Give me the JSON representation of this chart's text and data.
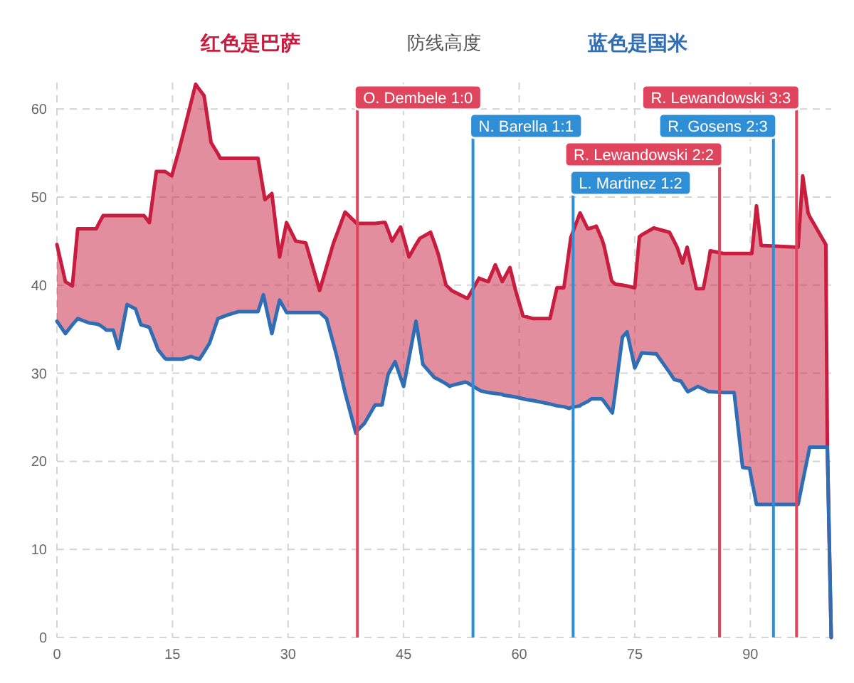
{
  "chart_data": {
    "type": "line",
    "title": "防线高度",
    "xlim": [
      0,
      100.5
    ],
    "xticks": [
      0,
      15,
      30,
      45,
      60,
      75,
      90
    ],
    "ylim": [
      0,
      63
    ],
    "yticks": [
      0,
      10,
      20,
      30,
      40,
      50,
      60
    ],
    "grid": true,
    "legend": "top",
    "x": [
      0,
      1.1,
      2.0,
      2.7,
      4.2,
      5.1,
      5.5,
      6.0,
      6.4,
      7.3,
      8.0,
      9.1,
      10.2,
      10.9,
      11.3,
      12.0,
      12.9,
      13.1,
      14.0,
      14.2,
      14.9,
      15.8,
      16.3,
      17.4,
      18.0,
      18.5,
      19.1,
      19.8,
      20.0,
      20.9,
      21.2,
      22.1,
      23.6,
      26.1,
      26.8,
      27.0,
      27.9,
      28.9,
      29.8,
      31.0,
      32.3,
      34.1,
      35.0,
      35.9,
      36.3,
      37.4,
      38.8,
      38.9,
      39.9,
      41.3,
      42.2,
      42.6,
      43.0,
      43.5,
      43.9,
      44.6,
      45.0,
      45.7,
      46.6,
      47.1,
      47.5,
      48.5,
      49.0,
      49.5,
      50.5,
      51.0,
      51.2,
      53.0,
      53.3,
      54.8,
      55.0,
      56.0,
      56.9,
      57.8,
      58.0,
      58.8,
      59.5,
      60.5,
      61.0,
      61.8,
      64.0,
      64.9,
      65.8,
      66.5,
      66.7,
      67.9,
      68.0,
      68.9,
      69.4,
      70.0,
      70.7,
      71.0,
      72.0,
      72.1,
      72.5,
      73.4,
      74.0,
      75.0,
      75.6,
      75.9,
      77.5,
      77.8,
      79.5,
      80.1,
      80.5,
      81.0,
      81.2,
      81.8,
      81.9,
      83.0,
      83.2,
      83.9,
      84.6,
      84.8,
      86.5,
      87.9,
      89.0,
      89.9,
      90.2,
      90.8,
      91.4,
      96.2,
      96.8,
      97.5,
      97.7,
      99.8,
      100.0,
      100.5
    ],
    "series": [
      {
        "name": "红色是巴萨",
        "color": "#c81d3e",
        "values": [
          44.6,
          40.4,
          39.9,
          46.4,
          46.4,
          46.4,
          47.1,
          47.9,
          47.9,
          47.9,
          47.9,
          47.9,
          47.9,
          47.9,
          47.9,
          47.1,
          52.9,
          52.9,
          52.9,
          52.8,
          52.4,
          55.2,
          56.9,
          60.7,
          62.8,
          62.2,
          61.5,
          57.4,
          56.2,
          54.9,
          54.4,
          54.4,
          54.4,
          54.4,
          50.7,
          49.7,
          50.4,
          43.2,
          47.1,
          45.0,
          44.8,
          39.4,
          42.1,
          44.8,
          45.7,
          48.3,
          47.1,
          47.0,
          47.0,
          47.0,
          47.1,
          47.1,
          46.2,
          45.0,
          45.6,
          46.6,
          45.4,
          43.2,
          44.6,
          45.3,
          45.5,
          46.0,
          44.8,
          43.5,
          40.0,
          39.6,
          39.4,
          38.6,
          38.5,
          40.8,
          40.7,
          40.4,
          42.3,
          40.4,
          40.7,
          42.0,
          39.5,
          36.5,
          36.4,
          36.2,
          36.2,
          39.7,
          39.7,
          44.1,
          45.4,
          48.2,
          48.0,
          46.4,
          46.5,
          46.7,
          45.3,
          44.5,
          40.5,
          40.4,
          40.1,
          40.0,
          39.9,
          39.7,
          45.5,
          45.7,
          46.5,
          46.4,
          46.0,
          45.0,
          44.3,
          43.0,
          42.5,
          44.3,
          43.9,
          39.6,
          39.6,
          39.6,
          42.8,
          43.9,
          43.6,
          43.6,
          43.6,
          43.6,
          43.6,
          49.0,
          44.5,
          44.3,
          52.4,
          48.2,
          47.8,
          44.6,
          21.6,
          0
        ],
        "upper": [
          44.6,
          40.4,
          39.9,
          46.4,
          46.4,
          46.4,
          47.1,
          47.9,
          47.9,
          47.9,
          47.9,
          47.9,
          47.9,
          47.9,
          47.9,
          47.1,
          52.9,
          52.9,
          52.9,
          52.8,
          52.4,
          55.2,
          56.9,
          60.7,
          62.8,
          62.2,
          61.5,
          57.4,
          56.2,
          54.9,
          54.4,
          54.4,
          54.4,
          54.4,
          50.7,
          49.7,
          50.4,
          43.2,
          47.1,
          45.0,
          44.8,
          39.4,
          42.1,
          44.8,
          45.7,
          48.3,
          47.1,
          47.0,
          47.0,
          47.0,
          47.1,
          47.1,
          46.2,
          45.0,
          45.6,
          46.6,
          45.4,
          43.2,
          44.6,
          45.3,
          45.5,
          46.0,
          44.8,
          43.5,
          40.0,
          39.6,
          39.4,
          38.6,
          38.5,
          40.8,
          40.7,
          40.4,
          42.3,
          40.4,
          40.7,
          42.0,
          39.5,
          36.5,
          36.4,
          36.2,
          36.2,
          39.7,
          39.7,
          44.1,
          45.4,
          48.2,
          48.0,
          46.4,
          46.5,
          46.7,
          45.3,
          44.5,
          40.5,
          40.4,
          40.1,
          40.0,
          39.9,
          39.7,
          45.5,
          45.7,
          46.5,
          46.4,
          46.0,
          45.0,
          44.3,
          43.0,
          42.5,
          44.3,
          43.9,
          39.6,
          39.6,
          39.6,
          42.8,
          43.9,
          43.6,
          43.6,
          43.6,
          43.6,
          43.6,
          49.0,
          44.5,
          44.3,
          52.4,
          48.2,
          47.8,
          44.6,
          21.6,
          0
        ],
        "lower": [
          35.9,
          34.5,
          35.5,
          36.2,
          35.7,
          35.6,
          35.5,
          35.2,
          34.9,
          34.9,
          32.8,
          37.8,
          37.3,
          35.5,
          35.4,
          35.2,
          33.2,
          32.7,
          31.7,
          31.6,
          31.6,
          31.6,
          31.6,
          31.9,
          31.7,
          31.6,
          32.4,
          33.4,
          33.9,
          36.2,
          36.3,
          36.6,
          37.0,
          37.0,
          38.9,
          38.1,
          34.5,
          38.3,
          36.9,
          36.9,
          36.9,
          36.9,
          36.2,
          33.3,
          32.0,
          27.8,
          23.2,
          23.4,
          24.3,
          26.4,
          26.4,
          28.2,
          29.9,
          30.7,
          31.3,
          29.5,
          28.5,
          31.7,
          35.9,
          33.2,
          31.0,
          30.0,
          29.5,
          29.3,
          28.8,
          28.5,
          28.6,
          29.0,
          28.9,
          28.1,
          28.0,
          27.8,
          27.7,
          27.6,
          27.5,
          27.4,
          27.3,
          27.1,
          27.0,
          26.9,
          26.5,
          26.3,
          26.2,
          26.0,
          26.1,
          26.3,
          26.4,
          26.8,
          27.1,
          27.1,
          27.1,
          26.8,
          25.6,
          25.5,
          28.1,
          34.1,
          34.7,
          30.6,
          31.7,
          32.3,
          32.2,
          32.2,
          30.1,
          29.3,
          29.2,
          29.1,
          28.8,
          28.0,
          27.9,
          28.4,
          28.5,
          28.2,
          27.9,
          27.9,
          27.8,
          27.8,
          19.3,
          19.2,
          17.8,
          15.1,
          15.1,
          15.1,
          17.7,
          20.7,
          21.6,
          21.6,
          21.6,
          0
        ]
      },
      {
        "name": "蓝色是国米",
        "color": "#2f6db5",
        "values": [
          35.9,
          34.5,
          35.5,
          36.2,
          35.7,
          35.6,
          35.5,
          35.2,
          34.9,
          34.9,
          32.8,
          37.8,
          37.3,
          35.5,
          35.4,
          35.2,
          33.2,
          32.7,
          31.7,
          31.6,
          31.6,
          31.6,
          31.6,
          31.9,
          31.7,
          31.6,
          32.4,
          33.4,
          33.9,
          36.2,
          36.3,
          36.6,
          37.0,
          37.0,
          38.9,
          38.1,
          34.5,
          38.3,
          36.9,
          36.9,
          36.9,
          36.9,
          36.2,
          33.3,
          32.0,
          27.8,
          23.2,
          23.4,
          24.3,
          26.4,
          26.4,
          28.2,
          29.9,
          30.7,
          31.3,
          29.5,
          28.5,
          31.7,
          35.9,
          33.2,
          31.0,
          30.0,
          29.5,
          29.3,
          28.8,
          28.5,
          28.6,
          29.0,
          28.9,
          28.1,
          28.0,
          27.8,
          27.7,
          27.6,
          27.5,
          27.4,
          27.3,
          27.1,
          27.0,
          26.9,
          26.5,
          26.3,
          26.2,
          26.0,
          26.1,
          26.3,
          26.4,
          26.8,
          27.1,
          27.1,
          27.1,
          26.8,
          25.6,
          25.5,
          28.1,
          34.1,
          34.7,
          30.6,
          31.7,
          32.3,
          32.2,
          32.2,
          30.1,
          29.3,
          29.2,
          29.1,
          28.8,
          28.0,
          27.9,
          28.4,
          28.5,
          28.2,
          27.9,
          27.9,
          27.8,
          27.8,
          19.3,
          19.2,
          17.8,
          15.1,
          15.1,
          15.1,
          17.7,
          20.7,
          21.6,
          21.6,
          21.6,
          0
        ]
      }
    ],
    "ref_lines": [
      {
        "axis": "x",
        "value": 39,
        "color": "#e0455e"
      },
      {
        "axis": "x",
        "value": 54,
        "color": "#2f8fd6"
      },
      {
        "axis": "x",
        "value": 67,
        "color": "#2f8fd6"
      },
      {
        "axis": "x",
        "value": 86,
        "color": "#e0455e"
      },
      {
        "axis": "x",
        "value": 93,
        "color": "#2f8fd6"
      },
      {
        "axis": "x",
        "value": 96,
        "color": "#e0455e"
      }
    ],
    "annotations": [
      "O. Dembele 1:0",
      "N. Barella 1:1",
      "L. Martinez 1:2",
      "R. Lewandowski 2:2",
      "R. Gosens 2:3",
      "R. Lewandowski 3:3"
    ]
  }
}
